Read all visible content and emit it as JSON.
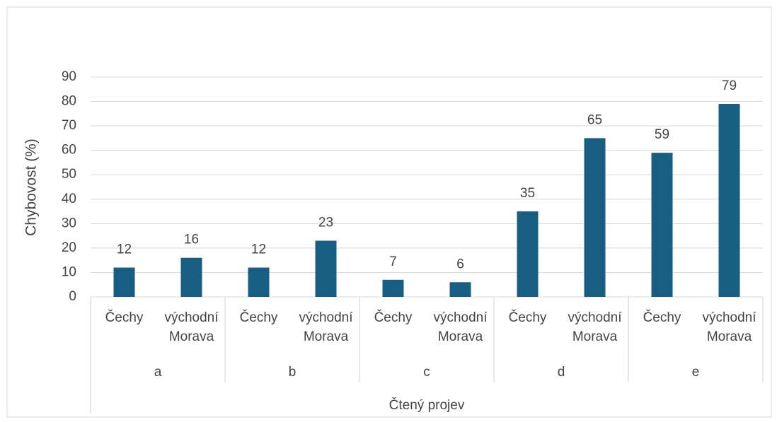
{
  "chart_data": {
    "type": "bar",
    "ylabel": "Chybovost (%)",
    "xlabel": "Čtený projev",
    "groups": [
      "a",
      "b",
      "c",
      "d",
      "e"
    ],
    "categories": [
      "Čechy",
      "východní Morava",
      "Čechy",
      "východní Morava",
      "Čechy",
      "východní Morava",
      "Čechy",
      "východní Morava",
      "Čechy",
      "východní Morava"
    ],
    "values": [
      12,
      16,
      12,
      23,
      7,
      6,
      35,
      65,
      59,
      79
    ],
    "color": "#175e82",
    "ylim": [
      0,
      90
    ],
    "yticks": [
      0,
      10,
      20,
      30,
      40,
      50,
      60,
      70,
      80,
      90
    ],
    "grid": true
  }
}
